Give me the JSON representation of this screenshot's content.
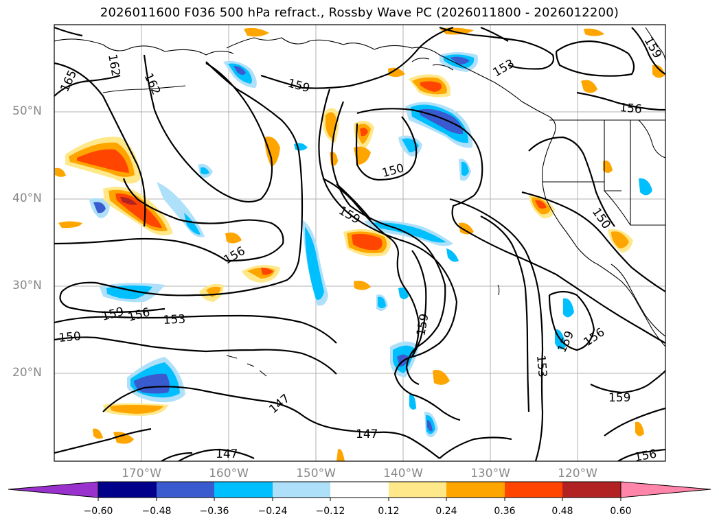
{
  "title": "2026011600 F036 500 hPa refract., Rossby Wave PC (2026011800 - 2026012200)",
  "lat_labels": [
    "50°N",
    "40°N",
    "30°N",
    "20°N"
  ],
  "lon_labels": [
    "170°W",
    "160°W",
    "150°W",
    "140°W",
    "130°W",
    "120°W"
  ],
  "contour_labels": {
    "c162a": "162",
    "c165": "165",
    "c162b": "162",
    "c159a": "159",
    "c153a": "153",
    "c159nw": "159",
    "c156ne": "156",
    "c150a": "150",
    "c159b": "159",
    "c156a": "156",
    "c150e": "150",
    "c159c": "159",
    "c156b": "156",
    "c153b": "153",
    "c150w": "150",
    "c159d": "159",
    "c153c": "153",
    "c159e": "159",
    "c156c": "156",
    "c159f": "159",
    "c147a": "147",
    "c147b": "147",
    "c147c": "147",
    "c156d": "156"
  },
  "colorbar": {
    "levels": [
      "−0.60",
      "−0.48",
      "−0.36",
      "−0.24",
      "−0.12",
      "0.12",
      "0.24",
      "0.36",
      "0.48",
      "0.60"
    ],
    "colors": [
      "#9932cc",
      "#00008b",
      "#3a5bcf",
      "#00bfff",
      "#afe0fa",
      "#ffffff",
      "#ffe88a",
      "#ffa500",
      "#ff4500",
      "#b22222",
      "#ff85aa"
    ]
  },
  "map_colors": {
    "neg_light": "#afe0fa",
    "neg_mid": "#00bfff",
    "neg_strong": "#3a5bcf",
    "pos_light": "#ffe88a",
    "pos_mid": "#ffa500",
    "pos_strong": "#ff4500",
    "pos_max": "#b22222"
  }
}
